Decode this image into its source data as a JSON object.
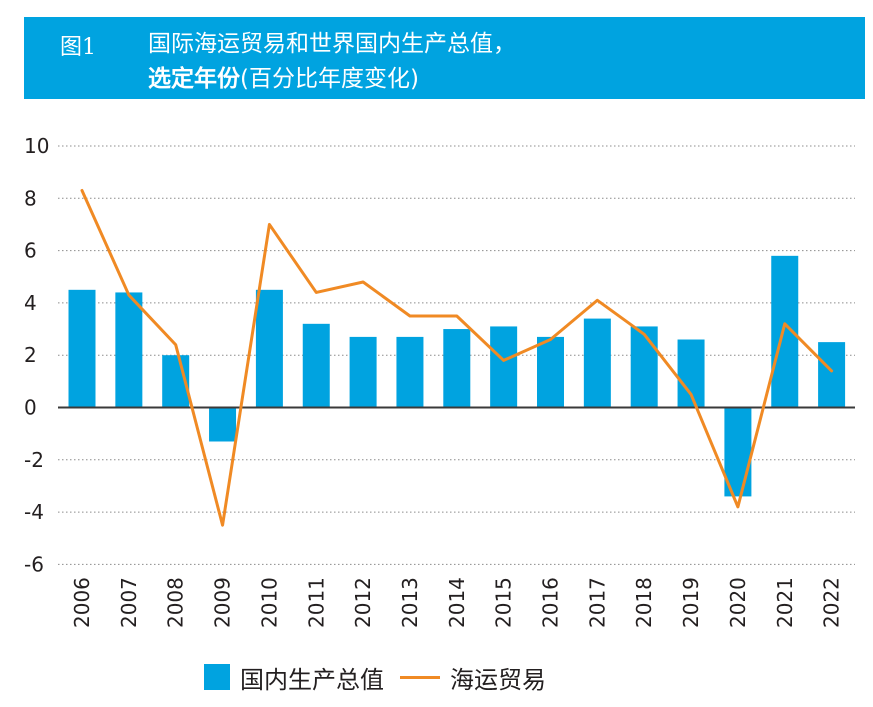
{
  "figure": {
    "number": "图1",
    "title_line1": "国际海运贸易和世界国内生产总值，",
    "title_line2_bold": "选定年份",
    "title_line2_rest": "(百分比年度变化)"
  },
  "colors": {
    "banner": "#00a3e0",
    "bars": "#00a3e0",
    "line": "#f08a24",
    "grid": "#8c8c8c"
  },
  "chart_data": {
    "type": "bar",
    "categories": [
      "2006",
      "2007",
      "2008",
      "2009",
      "2010",
      "2011",
      "2012",
      "2013",
      "2014",
      "2015",
      "2016",
      "2017",
      "2018",
      "2019",
      "2020",
      "2021",
      "2022"
    ],
    "series": [
      {
        "name": "国内生产总值",
        "type": "bar",
        "values": [
          4.5,
          4.4,
          2.0,
          -1.3,
          4.5,
          3.2,
          2.7,
          2.7,
          3.0,
          3.1,
          2.7,
          3.4,
          3.1,
          2.6,
          -3.4,
          5.8,
          2.5
        ]
      },
      {
        "name": "海运贸易",
        "type": "line",
        "values": [
          8.3,
          4.3,
          2.4,
          -4.5,
          7.0,
          4.4,
          4.8,
          3.5,
          3.5,
          1.8,
          2.6,
          4.1,
          2.8,
          0.5,
          -3.8,
          3.2,
          1.4
        ]
      }
    ],
    "ylim": [
      -6,
      10
    ],
    "yticks": [
      10,
      8,
      6,
      4,
      2,
      0,
      -2,
      -4,
      -6
    ],
    "grid": true,
    "legend_position": "bottom"
  }
}
